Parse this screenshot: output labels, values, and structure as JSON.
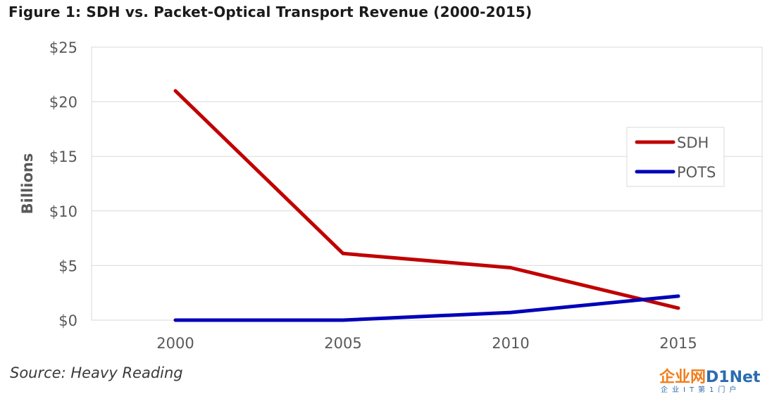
{
  "figure_title": "Figure 1: SDH vs. Packet-Optical Transport Revenue (2000-2015)",
  "source": "Source: Heavy Reading",
  "logo": {
    "cn": "企业网",
    "en": "D1Net",
    "sub": "企业IT第1门户"
  },
  "colors": {
    "SDH": "#c00000",
    "POTS": "#0000b8",
    "grid": "#d9d9d9",
    "axis_text": "#595959"
  },
  "chart_data": {
    "type": "line",
    "title": "",
    "xlabel": "",
    "ylabel": "Billions",
    "x": [
      "2000",
      "2005",
      "2010",
      "2015"
    ],
    "ylim": [
      0,
      25
    ],
    "yticks": [
      "$0",
      "$5",
      "$10",
      "$15",
      "$20",
      "$25"
    ],
    "grid": true,
    "legend_position": "right",
    "series": [
      {
        "name": "SDH",
        "values": [
          21.0,
          6.1,
          4.8,
          1.1
        ]
      },
      {
        "name": "POTS",
        "values": [
          0.0,
          0.0,
          0.7,
          2.2
        ]
      }
    ]
  }
}
